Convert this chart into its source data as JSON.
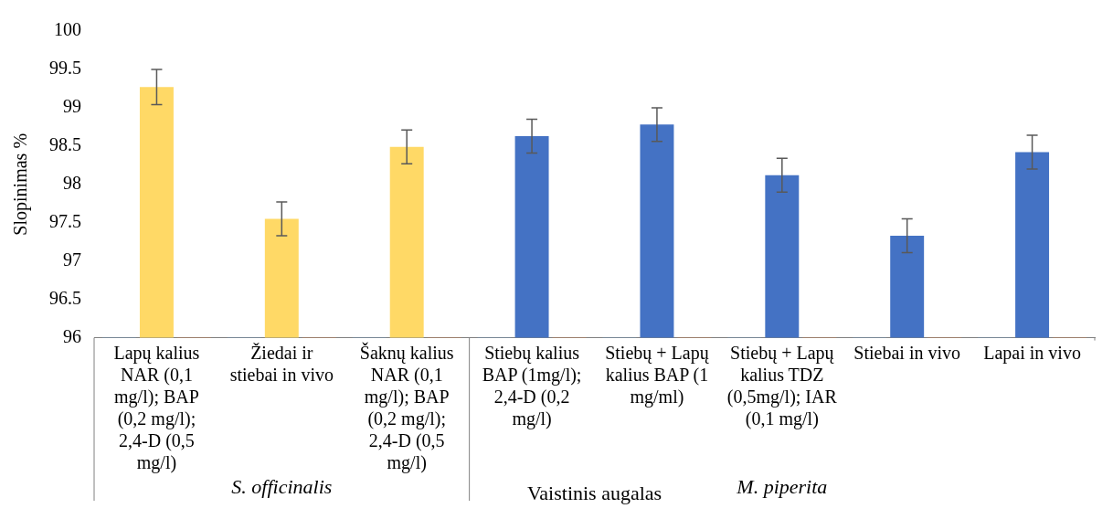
{
  "chart_data": {
    "type": "bar",
    "xlabel": "Vaistinis augalas",
    "ylabel": "Slopinimas %",
    "categories": [
      "Lapų kalius NAR (0,1 mg/l); BAP (0,2 mg/l); 2,4-D (0,5 mg/l)",
      "Žiedai ir stiebai in vivo",
      "Šaknų kalius NAR (0,1 mg/l); BAP (0,2 mg/l); 2,4-D (0,5 mg/l)",
      "Stiebų kalius BAP (1mg/l); 2,4-D (0,2 mg/l)",
      "Stiebų + Lapų kalius BAP (1 mg/ml)",
      "Stiebų + Lapų kalius TDZ (0,5mg/l); IAR (0,1 mg/l)",
      "Stiebai in vivo",
      "Lapai in vivo"
    ],
    "series": [
      {
        "color": "#5b9bd5",
        "values": [
          96,
          96,
          96,
          96,
          96,
          96,
          96,
          96
        ]
      },
      {
        "colors": [
          "#ffd966",
          "#ffd966",
          "#ffd966",
          "#4472c4",
          "#4472c4",
          "#4472c4",
          "#4472c4",
          "#4472c4"
        ],
        "values": [
          99.27,
          97.55,
          98.49,
          98.63,
          98.78,
          98.12,
          97.33,
          98.42
        ],
        "errors": [
          0.23,
          0.22,
          0.22,
          0.22,
          0.22,
          0.22,
          0.22,
          0.22
        ]
      },
      {
        "color": "#ed7d31",
        "values": [
          96,
          96,
          96,
          96,
          96,
          96,
          96,
          96
        ]
      }
    ],
    "ylim": [
      96,
      100
    ],
    "yticks": [
      96,
      96.5,
      97,
      97.5,
      98,
      98.5,
      99,
      99.5,
      100
    ],
    "annotations": [
      "S. officinalis",
      "M. piperita"
    ],
    "grid": false,
    "legend": false
  }
}
